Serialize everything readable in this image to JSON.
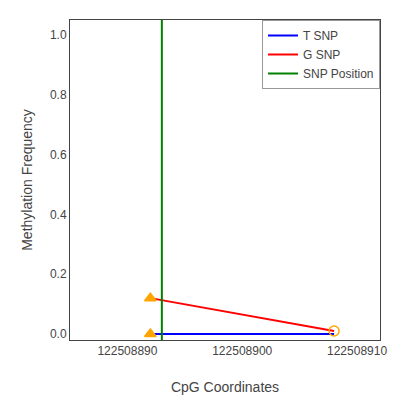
{
  "chart_data": {
    "type": "line",
    "xlabel": "CpG Coordinates",
    "ylabel": "Methylation Frequency",
    "xlim": [
      122508885,
      122508912
    ],
    "ylim": [
      -0.02,
      1.05
    ],
    "xticks": [
      122508890,
      122508900,
      122508910
    ],
    "yticks": [
      {
        "value": 0.0,
        "label": "0.0"
      },
      0.2,
      0.4,
      0.6,
      0.8,
      {
        "value": 1.0,
        "label": "1.0"
      }
    ],
    "grid": false,
    "legend": "upper right",
    "series": [
      {
        "name": "T SNP",
        "color": "blue",
        "type": "line",
        "x": [
          122508892,
          122508908
        ],
        "values": [
          0.0,
          0.0
        ]
      },
      {
        "name": "G SNP",
        "color": "red",
        "type": "line",
        "x": [
          122508892,
          122508908
        ],
        "values": [
          0.12,
          0.01
        ]
      },
      {
        "name": "SNP Position",
        "color": "green",
        "type": "vline",
        "x": [
          122508893
        ]
      },
      {
        "type": "scatter",
        "color": "orange",
        "marker": "triangle-up",
        "x": [
          122508892,
          122508892
        ],
        "values": [
          0.0,
          0.12
        ]
      },
      {
        "type": "scatter",
        "color": "orange",
        "marker": "circle-open",
        "x": [
          122508908
        ],
        "values": [
          0.01
        ]
      }
    ]
  }
}
